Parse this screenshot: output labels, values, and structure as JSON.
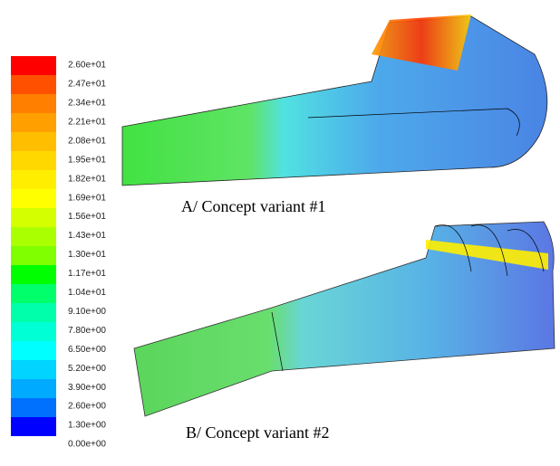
{
  "colorbar": {
    "labels": [
      "2.60e+01",
      "2.47e+01",
      "2.34e+01",
      "2.21e+01",
      "2.08e+01",
      "1.95e+01",
      "1.82e+01",
      "1.69e+01",
      "1.56e+01",
      "1.43e+01",
      "1.30e+01",
      "1.17e+01",
      "1.04e+01",
      "9.10e+00",
      "7.80e+00",
      "6.50e+00",
      "5.20e+00",
      "3.90e+00",
      "2.60e+00",
      "1.30e+00",
      "0.00e+00"
    ],
    "colors": [
      "#ff0000",
      "#ff5000",
      "#ff8000",
      "#ffa000",
      "#ffbf00",
      "#ffd800",
      "#ffee00",
      "#ffff00",
      "#d4ff00",
      "#aaff00",
      "#7fff00",
      "#00ff00",
      "#00ff6a",
      "#00ffaa",
      "#00ffd4",
      "#00ffff",
      "#00d4ff",
      "#00aaff",
      "#0070ff",
      "#0000ff"
    ]
  },
  "figures": [
    {
      "caption": "A/ Concept variant #1"
    },
    {
      "caption": "B/ Concept variant #2"
    }
  ]
}
